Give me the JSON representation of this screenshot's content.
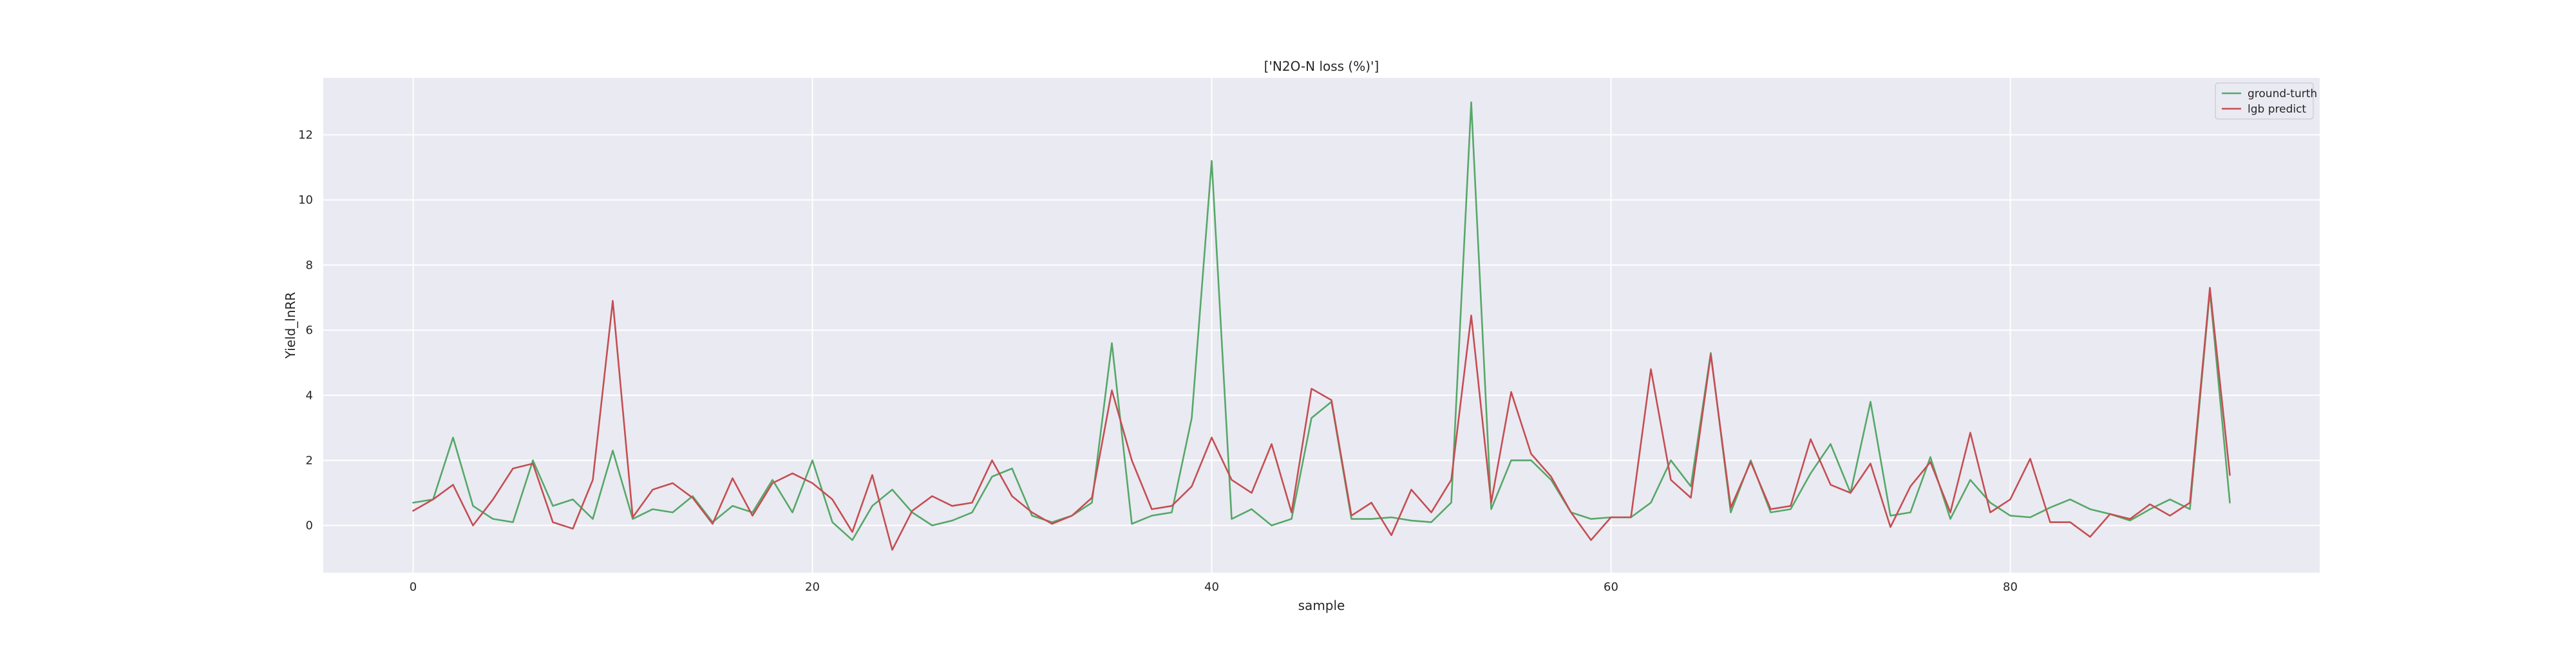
{
  "chart_data": {
    "type": "line",
    "title": "['N2O-N loss (%)']",
    "xlabel": "sample",
    "ylabel": "Yield_lnRR",
    "xlim": [
      -4.5,
      95.5
    ],
    "ylim": [
      -1.45,
      13.75
    ],
    "xticks": [
      0,
      20,
      40,
      60,
      80
    ],
    "yticks": [
      0,
      2,
      4,
      6,
      8,
      10,
      12
    ],
    "grid": true,
    "legend_position": "top-right",
    "x": [
      0,
      1,
      2,
      3,
      4,
      5,
      6,
      7,
      8,
      9,
      10,
      11,
      12,
      13,
      14,
      15,
      16,
      17,
      18,
      19,
      20,
      21,
      22,
      23,
      24,
      25,
      26,
      27,
      28,
      29,
      30,
      31,
      32,
      33,
      34,
      35,
      36,
      37,
      38,
      39,
      40,
      41,
      42,
      43,
      44,
      45,
      46,
      47,
      48,
      49,
      50,
      51,
      52,
      53,
      54,
      55,
      56,
      57,
      58,
      59,
      60,
      61,
      62,
      63,
      64,
      65,
      66,
      67,
      68,
      69,
      70,
      71,
      72,
      73,
      74,
      75,
      76,
      77,
      78,
      79,
      80,
      81,
      82,
      83,
      84,
      85,
      86,
      87,
      88,
      89,
      90,
      91
    ],
    "series": [
      {
        "name": "ground-turth",
        "color": "#55a868",
        "values": [
          0.7,
          0.8,
          2.7,
          0.6,
          0.2,
          0.1,
          2.0,
          0.6,
          0.8,
          0.2,
          2.3,
          0.2,
          0.5,
          0.4,
          0.9,
          0.1,
          0.6,
          0.4,
          1.4,
          0.4,
          2.0,
          0.1,
          -0.45,
          0.6,
          1.1,
          0.4,
          0.0,
          0.15,
          0.4,
          1.5,
          1.75,
          0.3,
          0.1,
          0.3,
          0.7,
          5.6,
          0.05,
          0.3,
          0.4,
          3.3,
          11.2,
          0.2,
          0.5,
          0.0,
          0.2,
          3.3,
          3.8,
          0.2,
          0.2,
          0.25,
          0.15,
          0.1,
          0.7,
          13.0,
          0.5,
          2.0,
          2.0,
          1.4,
          0.4,
          0.2,
          0.25,
          0.25,
          0.7,
          2.0,
          1.2,
          5.3,
          0.4,
          2.0,
          0.4,
          0.5,
          1.6,
          2.5,
          1.0,
          3.8,
          0.3,
          0.4,
          2.1,
          0.2,
          1.4,
          0.7,
          0.3,
          0.25,
          0.55,
          0.8,
          0.5,
          0.35,
          0.15,
          0.5,
          0.8,
          0.5,
          7.2,
          0.7
        ]
      },
      {
        "name": "lgb predict",
        "color": "#c44e52",
        "values": [
          0.45,
          0.8,
          1.25,
          0.0,
          0.8,
          1.75,
          1.9,
          0.1,
          -0.1,
          1.4,
          6.9,
          0.25,
          1.1,
          1.3,
          0.85,
          0.05,
          1.45,
          0.3,
          1.3,
          1.6,
          1.3,
          0.8,
          -0.2,
          1.55,
          -0.75,
          0.45,
          0.9,
          0.6,
          0.7,
          2.0,
          0.9,
          0.4,
          0.05,
          0.3,
          0.85,
          4.15,
          2.0,
          0.5,
          0.6,
          1.2,
          2.7,
          1.4,
          1.0,
          2.5,
          0.4,
          4.2,
          3.85,
          0.3,
          0.7,
          -0.3,
          1.1,
          0.4,
          1.4,
          6.45,
          0.7,
          4.1,
          2.2,
          1.5,
          0.4,
          -0.45,
          0.25,
          0.25,
          4.8,
          1.4,
          0.85,
          5.25,
          0.55,
          1.95,
          0.5,
          0.6,
          2.65,
          1.25,
          1.0,
          1.9,
          -0.05,
          1.2,
          1.95,
          0.4,
          2.85,
          0.4,
          0.8,
          2.05,
          0.1,
          0.1,
          -0.35,
          0.35,
          0.2,
          0.65,
          0.3,
          0.7,
          7.3,
          1.55
        ]
      }
    ]
  },
  "colors": {
    "plot_background": "#eaeaf2",
    "grid": "#ffffff",
    "text": "#262626"
  }
}
